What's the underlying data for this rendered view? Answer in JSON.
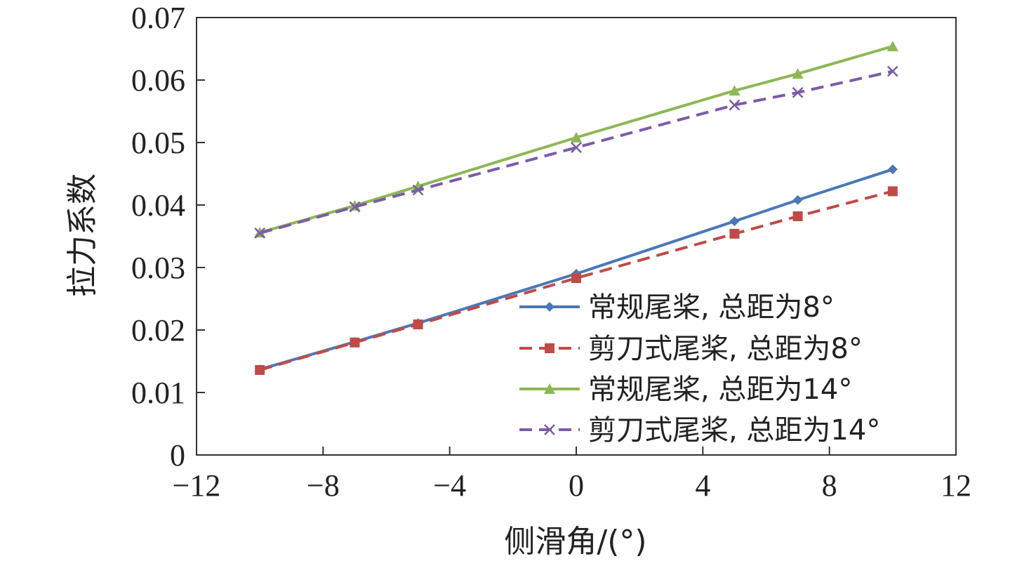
{
  "chart_data": {
    "type": "line",
    "title": "",
    "xlabel": "侧滑角/(°)",
    "ylabel": "拉力系数",
    "xlim": [
      -12,
      12
    ],
    "ylim": [
      0,
      0.07
    ],
    "xticks": [
      -12,
      -8,
      -4,
      0,
      4,
      8,
      12
    ],
    "xtick_labels": [
      "−12",
      "−8",
      "−4",
      "0",
      "4",
      "8",
      "12"
    ],
    "yticks": [
      0,
      0.01,
      0.02,
      0.03,
      0.04,
      0.05,
      0.06,
      0.07
    ],
    "ytick_labels": [
      "0",
      "0.01",
      "0.02",
      "0.03",
      "0.04",
      "0.05",
      "0.06",
      "0.07"
    ],
    "grid": false,
    "legend_position": "bottom-right",
    "x": [
      -10,
      -7,
      -5,
      0,
      5,
      7,
      10
    ],
    "series": [
      {
        "name": "常规尾桨, 总距为8°",
        "values": [
          0.0137,
          0.0181,
          0.0211,
          0.029,
          0.0374,
          0.0408,
          0.0457
        ],
        "color": "#4a78b8",
        "dash": "solid",
        "marker": "diamond"
      },
      {
        "name": "剪刀式尾桨, 总距为8°",
        "values": [
          0.0136,
          0.018,
          0.0209,
          0.0283,
          0.0354,
          0.0382,
          0.0422
        ],
        "color": "#be4b48",
        "dash": "dashed",
        "marker": "square"
      },
      {
        "name": "常规尾桨, 总距为14°",
        "values": [
          0.0356,
          0.0399,
          0.043,
          0.0508,
          0.0583,
          0.061,
          0.0654
        ],
        "color": "#8db755",
        "dash": "solid",
        "marker": "triangle"
      },
      {
        "name": "剪刀式尾桨, 总距为14°",
        "values": [
          0.0355,
          0.0397,
          0.0424,
          0.0492,
          0.056,
          0.058,
          0.0614
        ],
        "color": "#7b5ca8",
        "dash": "dashed",
        "marker": "x"
      }
    ]
  }
}
